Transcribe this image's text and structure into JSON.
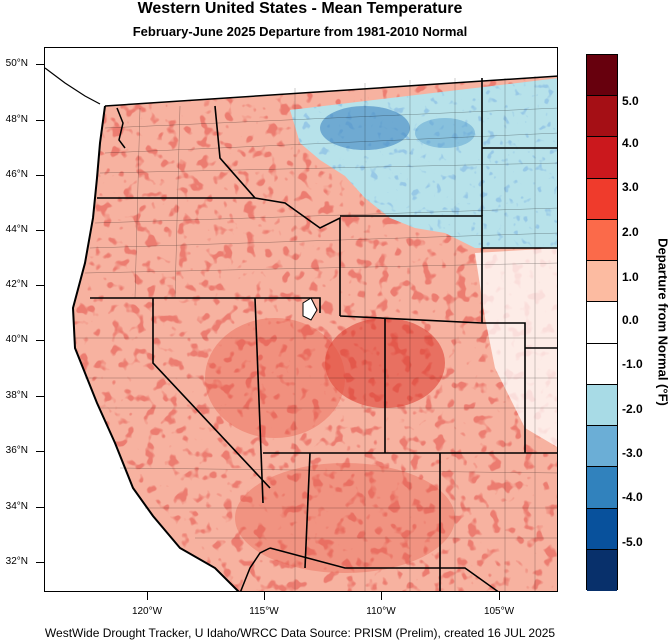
{
  "title": "Western United States - Mean Temperature",
  "subtitle": "February-June 2025  Departure from 1981-2010 Normal",
  "footer": "WestWide Drought Tracker, U Idaho/WRCC Data Source: PRISM (Prelim), created 16 JUL 2025",
  "latitude_labels": [
    "50°N",
    "48°N",
    "46°N",
    "44°N",
    "42°N",
    "40°N",
    "38°N",
    "36°N",
    "34°N",
    "32°N"
  ],
  "longitude_labels": [
    "120°W",
    "115°W",
    "110°W",
    "105°W"
  ],
  "colorbar": {
    "title": "Departure from Normal (°F)",
    "labels": [
      "5.0",
      "4.0",
      "3.0",
      "2.0",
      "1.0",
      "0.0",
      "-1.0",
      "-2.0",
      "-3.0",
      "-4.0",
      "-5.0"
    ],
    "colors": [
      "#67000d",
      "#a50f15",
      "#cb181d",
      "#ef3b2c",
      "#fb6a4a",
      "#fcbba1",
      "#ffffff",
      "#ffffff",
      "#a8dbe6",
      "#6baed6",
      "#3182bd",
      "#08519c",
      "#08306b"
    ]
  },
  "map_colors": {
    "land_warm": "#f4a08a",
    "warm_strong": "#d6312a",
    "cool": "#a8dbe6",
    "cool_strong": "#4f93c9",
    "ocean": "#ffffff",
    "border": "#000000"
  }
}
